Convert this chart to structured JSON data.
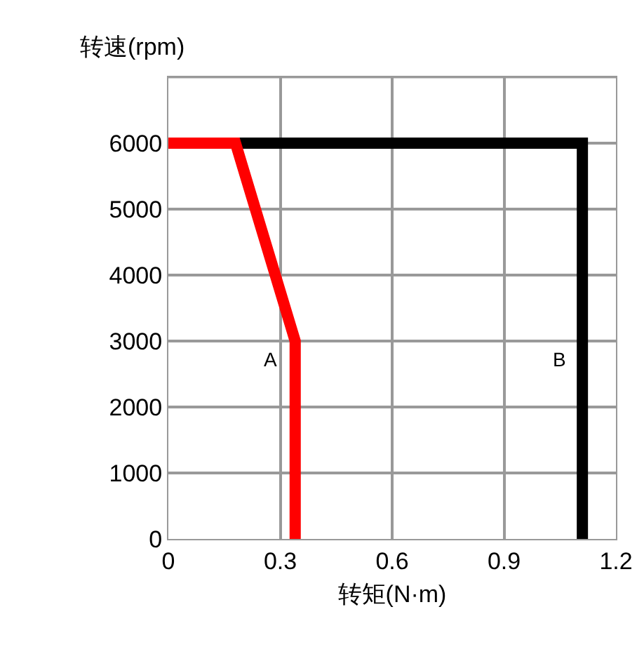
{
  "chart_data": {
    "type": "line",
    "xlabel": "转矩(N·m)",
    "ylabel": "转速(rpm)",
    "series": [
      {
        "name": "B",
        "color": "#000000",
        "x": [
          0,
          1.11,
          1.11
        ],
        "values": [
          6000,
          6000,
          0
        ]
      },
      {
        "name": "A",
        "color": "#ff0000",
        "x": [
          0,
          0.18,
          0.34,
          0.34
        ],
        "values": [
          6000,
          6000,
          3000,
          0
        ]
      }
    ],
    "xlim": [
      0,
      1.2
    ],
    "xticks": [
      0,
      0.3,
      0.6,
      0.9,
      1.2
    ],
    "ylim": [
      0,
      7000
    ],
    "yticks": [
      0,
      1000,
      2000,
      3000,
      4000,
      5000,
      6000
    ],
    "grid": true,
    "legend": false,
    "marker": "none",
    "line_style": "solid"
  }
}
